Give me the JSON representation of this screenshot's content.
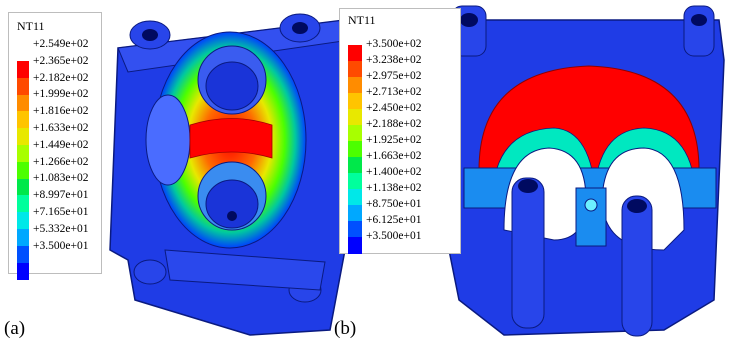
{
  "panel_a": {
    "label": "(a)",
    "legend": {
      "title": "NT11",
      "ticks": [
        "+2.549e+02",
        "+2.365e+02",
        "+2.182e+02",
        "+1.999e+02",
        "+1.816e+02",
        "+1.633e+02",
        "+1.449e+02",
        "+1.266e+02",
        "+1.083e+02",
        "+8.997e+01",
        "+7.165e+01",
        "+5.332e+01",
        "+3.500e+01"
      ],
      "colors": [
        "#ff0000",
        "#ff4a00",
        "#ff8c00",
        "#ffc400",
        "#e8e800",
        "#a8ff00",
        "#4cff00",
        "#00e84a",
        "#00ff9c",
        "#00e8e8",
        "#00a8ff",
        "#0050ff",
        "#0000ff"
      ]
    }
  },
  "panel_b": {
    "label": "(b)",
    "legend": {
      "title": "NT11",
      "ticks": [
        "+3.500e+02",
        "+3.238e+02",
        "+2.975e+02",
        "+2.713e+02",
        "+2.450e+02",
        "+2.188e+02",
        "+1.925e+02",
        "+1.663e+02",
        "+1.400e+02",
        "+1.138e+02",
        "+8.750e+01",
        "+6.125e+01",
        "+3.500e+01"
      ],
      "colors": [
        "#ff0000",
        "#ff4a00",
        "#ff8c00",
        "#ffc400",
        "#e8e800",
        "#a8ff00",
        "#4cff00",
        "#00e84a",
        "#00ff9c",
        "#00e8e8",
        "#00a8ff",
        "#0050ff",
        "#0000ff"
      ]
    }
  }
}
